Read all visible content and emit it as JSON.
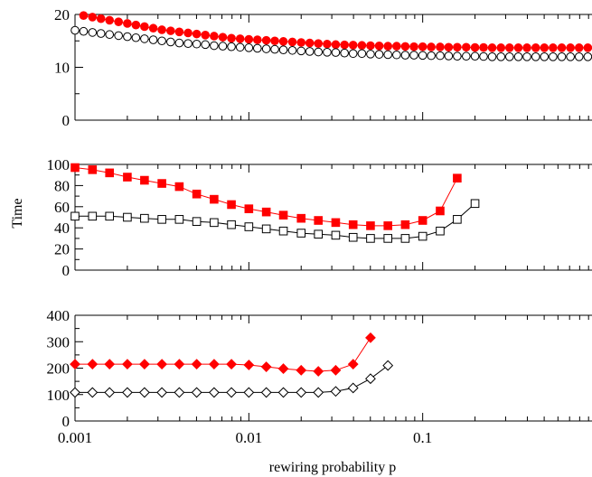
{
  "chart_data": [
    {
      "type": "line",
      "xscale": "log",
      "xlim": [
        0.001,
        1
      ],
      "ylim": [
        0,
        20
      ],
      "yticks": [
        0,
        10,
        20
      ],
      "grid": false,
      "series": [
        {
          "color": "#ff0000",
          "marker": "circle",
          "filled": true,
          "x": [
            0.00112,
            0.00126,
            0.00141,
            0.00158,
            0.00178,
            0.002,
            0.00224,
            0.00251,
            0.00282,
            0.00316,
            0.00355,
            0.00398,
            0.00447,
            0.00501,
            0.00562,
            0.00631,
            0.00708,
            0.00794,
            0.00891,
            0.01,
            0.0112,
            0.0126,
            0.0141,
            0.0158,
            0.0178,
            0.02,
            0.0224,
            0.0251,
            0.0282,
            0.0316,
            0.0355,
            0.0398,
            0.0447,
            0.0501,
            0.0562,
            0.0631,
            0.0708,
            0.0794,
            0.0891,
            0.1,
            0.112,
            0.126,
            0.141,
            0.158,
            0.178,
            0.2,
            0.224,
            0.251,
            0.282,
            0.316,
            0.355,
            0.398,
            0.447,
            0.501,
            0.562,
            0.631,
            0.708,
            0.794,
            0.891
          ],
          "y": [
            19.8,
            19.5,
            19.2,
            18.9,
            18.6,
            18.3,
            18.0,
            17.7,
            17.4,
            17.1,
            16.9,
            16.7,
            16.5,
            16.3,
            16.1,
            15.9,
            15.7,
            15.5,
            15.4,
            15.3,
            15.2,
            15.1,
            15.0,
            14.9,
            14.8,
            14.7,
            14.6,
            14.5,
            14.4,
            14.3,
            14.25,
            14.2,
            14.15,
            14.1,
            14.05,
            14.0,
            14.0,
            13.95,
            13.9,
            13.9,
            13.85,
            13.85,
            13.8,
            13.8,
            13.8,
            13.75,
            13.75,
            13.7,
            13.7,
            13.7,
            13.7,
            13.7,
            13.7,
            13.7,
            13.7,
            13.7,
            13.7,
            13.7,
            13.7
          ]
        },
        {
          "color": "#000000",
          "marker": "circle",
          "filled": false,
          "x": [
            0.001,
            0.00112,
            0.00126,
            0.00141,
            0.00158,
            0.00178,
            0.002,
            0.00224,
            0.00251,
            0.00282,
            0.00316,
            0.00355,
            0.00398,
            0.00447,
            0.00501,
            0.00562,
            0.00631,
            0.00708,
            0.00794,
            0.00891,
            0.01,
            0.0112,
            0.0126,
            0.0141,
            0.0158,
            0.0178,
            0.02,
            0.0224,
            0.0251,
            0.0282,
            0.0316,
            0.0355,
            0.0398,
            0.0447,
            0.0501,
            0.0562,
            0.0631,
            0.0708,
            0.0794,
            0.0891,
            0.1,
            0.112,
            0.126,
            0.141,
            0.158,
            0.178,
            0.2,
            0.224,
            0.251,
            0.282,
            0.316,
            0.355,
            0.398,
            0.447,
            0.501,
            0.562,
            0.631,
            0.708,
            0.794,
            0.891
          ],
          "y": [
            17.0,
            16.8,
            16.6,
            16.4,
            16.2,
            16.0,
            15.8,
            15.6,
            15.4,
            15.2,
            15.0,
            14.8,
            14.6,
            14.5,
            14.4,
            14.3,
            14.1,
            14.0,
            13.9,
            13.8,
            13.7,
            13.6,
            13.5,
            13.4,
            13.3,
            13.2,
            13.1,
            13.0,
            12.9,
            12.85,
            12.8,
            12.7,
            12.6,
            12.6,
            12.5,
            12.45,
            12.4,
            12.35,
            12.3,
            12.3,
            12.25,
            12.2,
            12.2,
            12.15,
            12.1,
            12.1,
            12.1,
            12.05,
            12.0,
            12.0,
            12.0,
            12.0,
            12.0,
            12.0,
            12.0,
            12.0,
            12.0,
            12.0,
            12.0,
            12.0
          ]
        }
      ]
    },
    {
      "type": "line",
      "xscale": "log",
      "xlim": [
        0.001,
        1
      ],
      "ylim": [
        0,
        100
      ],
      "yticks": [
        0,
        20,
        40,
        60,
        80,
        100
      ],
      "ylabel": "Time",
      "grid": false,
      "series": [
        {
          "color": "#ff0000",
          "marker": "square",
          "filled": true,
          "x": [
            0.001,
            0.00126,
            0.00158,
            0.002,
            0.00251,
            0.00316,
            0.00398,
            0.00501,
            0.00631,
            0.00794,
            0.01,
            0.0126,
            0.0158,
            0.02,
            0.0251,
            0.0316,
            0.0398,
            0.0501,
            0.0631,
            0.0794,
            0.1,
            0.126,
            0.158
          ],
          "y": [
            97,
            95,
            92,
            88,
            85,
            82,
            79,
            72,
            67,
            62,
            58,
            55,
            52,
            49,
            47,
            45,
            43,
            42,
            42,
            43,
            47,
            56,
            87
          ]
        },
        {
          "color": "#000000",
          "marker": "square",
          "filled": false,
          "x": [
            0.001,
            0.00126,
            0.00158,
            0.002,
            0.00251,
            0.00316,
            0.00398,
            0.00501,
            0.00631,
            0.00794,
            0.01,
            0.0126,
            0.0158,
            0.02,
            0.0251,
            0.0316,
            0.0398,
            0.0501,
            0.0631,
            0.0794,
            0.1,
            0.126,
            0.158,
            0.2
          ],
          "y": [
            51,
            51,
            51,
            50,
            49,
            48,
            48,
            46,
            45,
            43,
            41,
            39,
            37,
            35,
            34,
            33,
            31,
            30,
            30,
            30,
            32,
            37,
            48,
            63
          ]
        }
      ]
    },
    {
      "type": "line",
      "xscale": "log",
      "xlim": [
        0.001,
        1
      ],
      "ylim": [
        0,
        400
      ],
      "yticks": [
        0,
        100,
        200,
        300,
        400
      ],
      "xticks": [
        0.001,
        0.01,
        0.1
      ],
      "xticklabels": [
        "0.001",
        "0.01",
        "0.1"
      ],
      "xlabel": "rewiring probability p",
      "grid": false,
      "series": [
        {
          "color": "#ff0000",
          "marker": "diamond",
          "filled": true,
          "x": [
            0.001,
            0.00126,
            0.00158,
            0.002,
            0.00251,
            0.00316,
            0.00398,
            0.00501,
            0.00631,
            0.00794,
            0.01,
            0.0126,
            0.0158,
            0.02,
            0.0251,
            0.0316,
            0.0398,
            0.0501
          ],
          "y": [
            215,
            215,
            215,
            215,
            215,
            215,
            215,
            215,
            215,
            215,
            212,
            205,
            198,
            192,
            188,
            192,
            215,
            315
          ]
        },
        {
          "color": "#000000",
          "marker": "diamond",
          "filled": false,
          "x": [
            0.001,
            0.00126,
            0.00158,
            0.002,
            0.00251,
            0.00316,
            0.00398,
            0.00501,
            0.00631,
            0.00794,
            0.01,
            0.0126,
            0.0158,
            0.02,
            0.0251,
            0.0316,
            0.0398,
            0.0501,
            0.0631
          ],
          "y": [
            108,
            108,
            108,
            108,
            108,
            108,
            108,
            108,
            108,
            108,
            108,
            108,
            108,
            108,
            108,
            112,
            125,
            160,
            210
          ]
        }
      ]
    }
  ]
}
